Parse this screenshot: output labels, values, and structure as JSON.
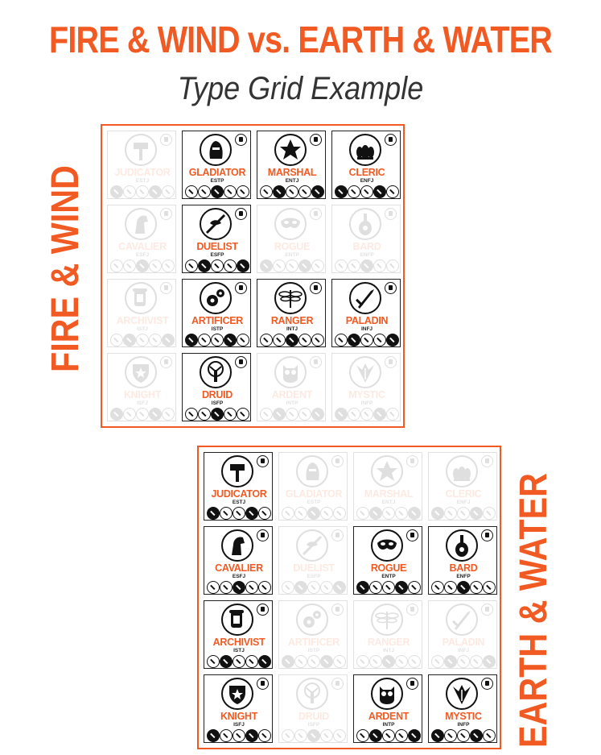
{
  "title": "FIRE & WIND vs. EARTH & WATER",
  "subtitle": "Type Grid Example",
  "grids": [
    {
      "label": "FIRE & WIND",
      "cards": [
        {
          "name": "JUDICATOR",
          "code": "ESTJ",
          "active": false,
          "icon": "hammer-icon"
        },
        {
          "name": "GLADIATOR",
          "code": "ESTP",
          "active": true,
          "icon": "helmet-icon"
        },
        {
          "name": "MARSHAL",
          "code": "ENTJ",
          "active": true,
          "icon": "star-icon"
        },
        {
          "name": "CLERIC",
          "code": "ENFJ",
          "active": true,
          "icon": "lotus-icon"
        },
        {
          "name": "CAVALIER",
          "code": "ESFJ",
          "active": false,
          "icon": "horse-icon"
        },
        {
          "name": "DUELIST",
          "code": "ESFP",
          "active": true,
          "icon": "bird-sword-icon"
        },
        {
          "name": "ROGUE",
          "code": "ENTP",
          "active": false,
          "icon": "mask-icon"
        },
        {
          "name": "BARD",
          "code": "ENFP",
          "active": false,
          "icon": "lute-icon"
        },
        {
          "name": "ARCHIVIST",
          "code": "ISTJ",
          "active": false,
          "icon": "scroll-icon"
        },
        {
          "name": "ARTIFICER",
          "code": "ISTP",
          "active": true,
          "icon": "gears-icon"
        },
        {
          "name": "RANGER",
          "code": "INTJ",
          "active": true,
          "icon": "dragonfly-icon"
        },
        {
          "name": "PALADIN",
          "code": "INFJ",
          "active": true,
          "icon": "sword-icon"
        },
        {
          "name": "KNIGHT",
          "code": "ISFJ",
          "active": false,
          "icon": "shield-icon"
        },
        {
          "name": "DRUID",
          "code": "ISFP",
          "active": true,
          "icon": "tree-icon"
        },
        {
          "name": "ARDENT",
          "code": "INTP",
          "active": false,
          "icon": "owl-icon"
        },
        {
          "name": "MYSTIC",
          "code": "INFP",
          "active": false,
          "icon": "wings-icon"
        }
      ]
    },
    {
      "label": "EARTH & WATER",
      "cards": [
        {
          "name": "JUDICATOR",
          "code": "ESTJ",
          "active": true,
          "icon": "hammer-icon"
        },
        {
          "name": "GLADIATOR",
          "code": "ESTP",
          "active": false,
          "icon": "helmet-icon"
        },
        {
          "name": "MARSHAL",
          "code": "ENTJ",
          "active": false,
          "icon": "star-icon"
        },
        {
          "name": "CLERIC",
          "code": "ENFJ",
          "active": false,
          "icon": "lotus-icon"
        },
        {
          "name": "CAVALIER",
          "code": "ESFJ",
          "active": true,
          "icon": "horse-icon"
        },
        {
          "name": "DUELIST",
          "code": "ESFP",
          "active": false,
          "icon": "bird-sword-icon"
        },
        {
          "name": "ROGUE",
          "code": "ENTP",
          "active": true,
          "icon": "mask-icon"
        },
        {
          "name": "BARD",
          "code": "ENFP",
          "active": true,
          "icon": "lute-icon"
        },
        {
          "name": "ARCHIVIST",
          "code": "ISTJ",
          "active": true,
          "icon": "scroll-icon"
        },
        {
          "name": "ARTIFICER",
          "code": "ISTP",
          "active": false,
          "icon": "gears-icon"
        },
        {
          "name": "RANGER",
          "code": "INTJ",
          "active": false,
          "icon": "dragonfly-icon"
        },
        {
          "name": "PALADIN",
          "code": "INFJ",
          "active": false,
          "icon": "sword-icon"
        },
        {
          "name": "KNIGHT",
          "code": "ISFJ",
          "active": true,
          "icon": "shield-icon"
        },
        {
          "name": "DRUID",
          "code": "ISFP",
          "active": false,
          "icon": "tree-icon"
        },
        {
          "name": "ARDENT",
          "code": "INTP",
          "active": true,
          "icon": "owl-icon"
        },
        {
          "name": "MYSTIC",
          "code": "INFP",
          "active": true,
          "icon": "wings-icon"
        }
      ]
    }
  ],
  "colors": {
    "accent": "#f15a22",
    "ink": "#111111",
    "subtitle": "#333333"
  }
}
